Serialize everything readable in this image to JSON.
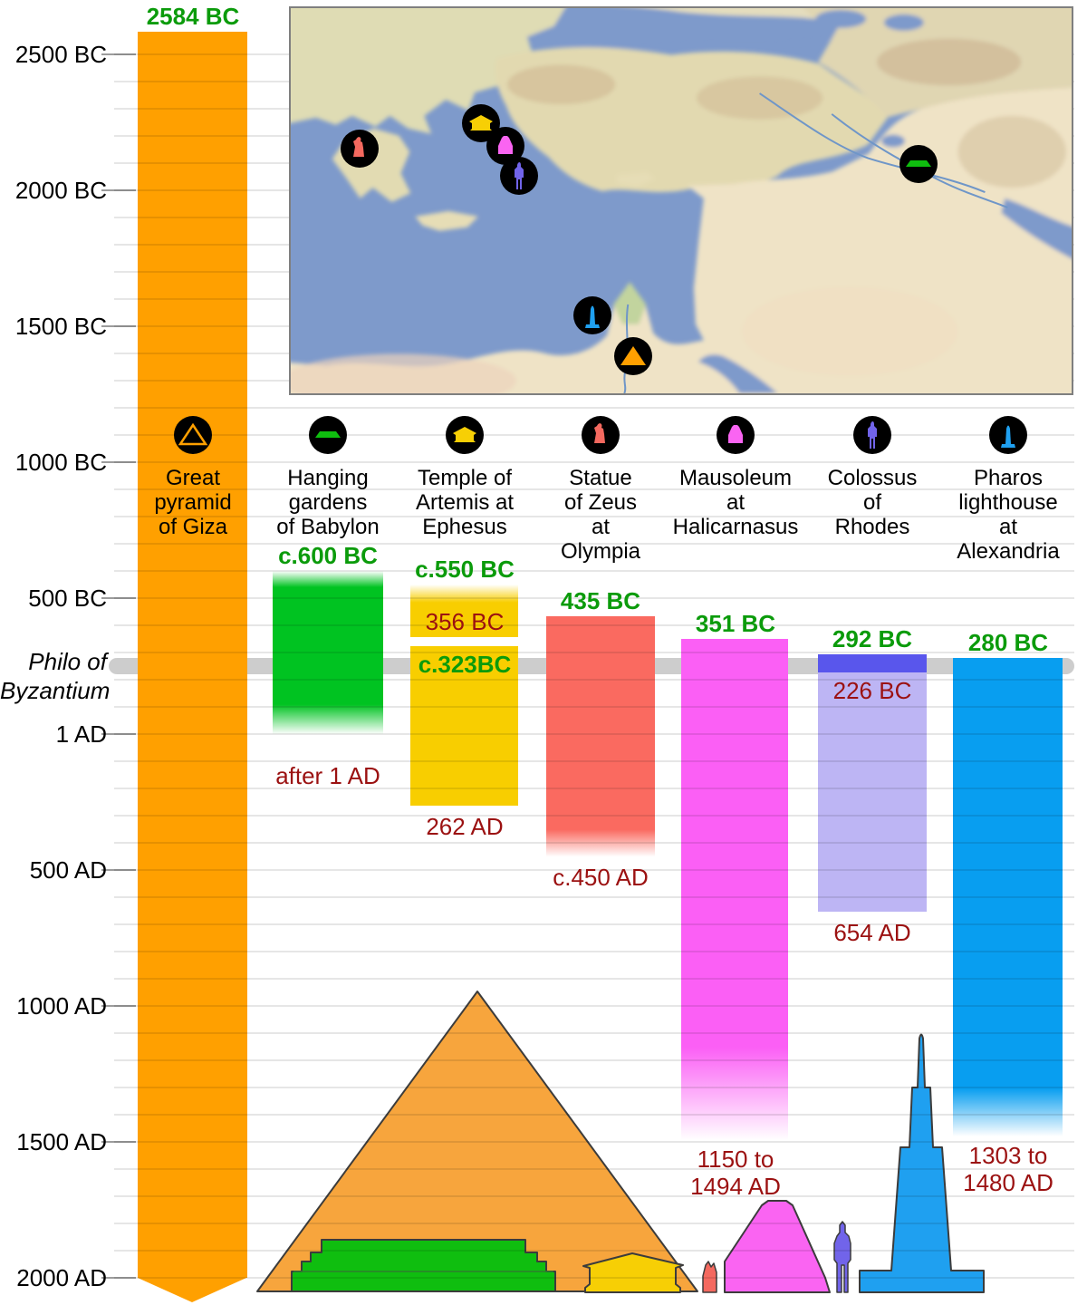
{
  "colors": {
    "green_text": "#0B9B0B",
    "red_text": "#9B1111",
    "philo_line": "#CDCDCD",
    "gridline": "#E6E6E6",
    "map_sea": "#7E9ACB"
  },
  "axis_ticks": [
    {
      "label": "2500 BC",
      "year": -2500
    },
    {
      "label": "2000 BC",
      "year": -2000
    },
    {
      "label": "1500 BC",
      "year": -1500
    },
    {
      "label": "1000 BC",
      "year": -1000
    },
    {
      "label": "500 BC",
      "year": -500
    },
    {
      "label": "1 AD",
      "year": 1
    },
    {
      "label": "500 AD",
      "year": 500
    },
    {
      "label": "1000 AD",
      "year": 1000
    },
    {
      "label": "1500 AD",
      "year": 1500
    },
    {
      "label": "2000 AD",
      "year": 2000
    }
  ],
  "philo_marker": {
    "line1": "Philo of",
    "line2": "Byzantium",
    "year": -250
  },
  "chart_data": {
    "type": "timeline",
    "y_axis": {
      "unit": "year",
      "range": [
        -2584,
        2000
      ],
      "gridline_interval": 100,
      "label_interval": 500
    },
    "wonders": [
      {
        "id": "giza",
        "label_lines": [
          "Great",
          "pyramid",
          "of Giza"
        ],
        "color": "#FFA000",
        "built_label": "2584 BC",
        "still_standing": true,
        "segments": [
          {
            "from": -2584,
            "to": 2000,
            "fade_in": 0,
            "fade_out": 0
          }
        ],
        "labels": [
          {
            "text": "2584 BC",
            "color": "green",
            "kind": "built",
            "year": -2584
          }
        ]
      },
      {
        "id": "gardens",
        "label_lines": [
          "Hanging",
          "gardens",
          "of Babylon"
        ],
        "color": "#00C321",
        "built_label": "c.600 BC",
        "destroyed_label": "after 1 AD",
        "segments": [
          {
            "from": -600,
            "to": 1,
            "fade_in": 18,
            "fade_out": 33
          }
        ],
        "labels": [
          {
            "text": "c.600 BC",
            "color": "green",
            "kind": "built",
            "year": -600
          },
          {
            "text": "after 1 AD",
            "color": "red",
            "kind": "after",
            "year": 1
          }
        ]
      },
      {
        "id": "artemis",
        "label_lines": [
          "Temple of",
          "Artemis at",
          "Ephesus"
        ],
        "color": "#F8CE00",
        "built_label": "c.550 BC",
        "destroyed_label": "262 AD",
        "segments": [
          {
            "from": -550,
            "to": -356,
            "fade_in": 20,
            "fade_out": 0
          },
          {
            "from": -323,
            "to": 262,
            "fade_in": 0,
            "fade_out": 0
          }
        ],
        "labels": [
          {
            "text": "c.550 BC",
            "color": "green",
            "kind": "built",
            "year": -550
          },
          {
            "text": "356 BC",
            "color": "red",
            "kind": "above_end",
            "year": -356
          },
          {
            "text": "c.323BC",
            "color": "green",
            "kind": "inside_start",
            "year": -323
          },
          {
            "text": "262 AD",
            "color": "red",
            "kind": "below",
            "year": 262
          }
        ]
      },
      {
        "id": "zeus",
        "label_lines": [
          "Statue",
          "of Zeus",
          "at",
          "Olympia"
        ],
        "color": "#FA6A60",
        "built_label": "435 BC",
        "destroyed_label": "c.450 AD",
        "segments": [
          {
            "from": -435,
            "to": 450,
            "fade_in": 0,
            "fade_out": 30
          }
        ],
        "labels": [
          {
            "text": "435 BC",
            "color": "green",
            "kind": "built",
            "year": -435
          },
          {
            "text": "c.450 AD",
            "color": "red",
            "kind": "below",
            "year": 450
          }
        ]
      },
      {
        "id": "mausoleum",
        "label_lines": [
          "Mausoleum",
          "at",
          "Halicarnasus"
        ],
        "color": "#FB5FF5",
        "built_label": "351 BC",
        "destroyed_label": "1150 to 1494 AD",
        "segments": [
          {
            "from": -351,
            "to": 1494,
            "fade_in": 0,
            "fade_out": 103
          }
        ],
        "labels": [
          {
            "text": "351 BC",
            "color": "green",
            "kind": "built",
            "year": -351
          },
          {
            "lines": [
              "1150 to",
              "1494 AD"
            ],
            "color": "red",
            "kind": "range_below",
            "year": 1494
          }
        ]
      },
      {
        "id": "colossus",
        "label_lines": [
          "Colossus",
          "of",
          "Rhodes"
        ],
        "color": "#5956EC",
        "built_label": "292 BC",
        "destroyed_label": "226 BC",
        "segments": [
          {
            "from": -292,
            "to": -226,
            "fade_in": 0,
            "fade_out": 0
          },
          {
            "from": -226,
            "to": 654,
            "fade_in": 0,
            "fade_out": 0,
            "color": "#BDB5F4"
          }
        ],
        "labels": [
          {
            "text": "292 BC",
            "color": "green",
            "kind": "built",
            "year": -292
          },
          {
            "text": "226 BC",
            "color": "red",
            "kind": "small_below",
            "year": -226
          },
          {
            "text": "654 AD",
            "color": "red",
            "kind": "below",
            "year": 654
          }
        ]
      },
      {
        "id": "pharos",
        "label_lines": [
          "Pharos",
          "lighthouse",
          "at",
          "Alexandria"
        ],
        "color": "#089EF0",
        "built_label": "280 BC",
        "destroyed_label": "1303 to 1480 AD",
        "segments": [
          {
            "from": -280,
            "to": 1480,
            "fade_in": 0,
            "fade_out": 53
          }
        ],
        "labels": [
          {
            "text": "280 BC",
            "color": "green",
            "kind": "built",
            "year": -280
          },
          {
            "lines": [
              "1303 to",
              "1480 AD"
            ],
            "color": "red",
            "kind": "range_below",
            "year": 1480
          }
        ]
      }
    ]
  },
  "map": {
    "markers": [
      "zeus",
      "artemis",
      "mausoleum",
      "colossus",
      "pharos",
      "giza",
      "gardens"
    ]
  }
}
